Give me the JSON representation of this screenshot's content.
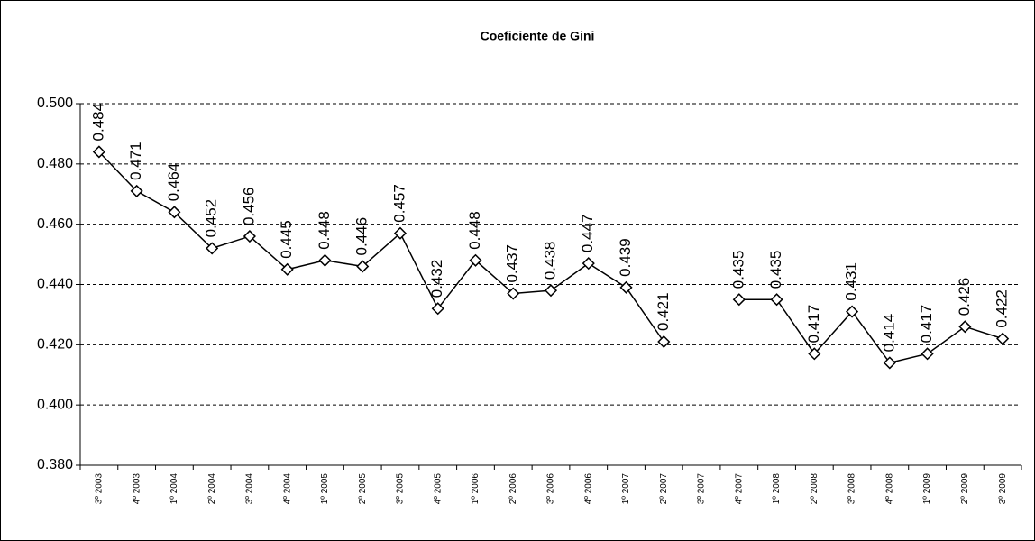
{
  "chart_data": {
    "type": "line",
    "title": "Coeficiente de Gini",
    "categories": [
      "3º 2003",
      "4º 2003",
      "1º 2004",
      "2º 2004",
      "3º 2004",
      "4º 2004",
      "1º 2005",
      "2º 2005",
      "3º 2005",
      "4º 2005",
      "1º 2006",
      "2º 2006",
      "3º 2006",
      "4º 2006",
      "1º 2007",
      "2º 2007",
      "3º 2007",
      "4º 2007",
      "1º 2008",
      "2º 2008",
      "3º 2008",
      "4º 2008",
      "1º 2009",
      "2º 2009",
      "3º 2009"
    ],
    "series": [
      {
        "color": "#000000",
        "values": [
          0.484,
          0.471,
          0.464,
          0.452,
          0.456,
          0.445,
          0.448,
          0.446,
          0.457,
          0.432,
          0.448,
          0.437,
          0.438,
          0.447,
          0.439,
          0.421,
          null,
          0.435,
          0.435,
          0.417,
          0.431,
          0.414,
          0.417,
          0.426,
          0.422
        ]
      }
    ],
    "ylim": [
      0.38,
      0.5
    ],
    "yticks": [
      {
        "value": 0.38,
        "label": "0.380"
      },
      {
        "value": 0.4,
        "label": "0.400"
      },
      {
        "value": 0.42,
        "label": "0.420"
      },
      {
        "value": 0.44,
        "label": "0.440"
      },
      {
        "value": 0.46,
        "label": "0.460"
      },
      {
        "value": 0.48,
        "label": "0.480"
      },
      {
        "value": 0.5,
        "label": "0.500"
      }
    ],
    "grid": true
  }
}
